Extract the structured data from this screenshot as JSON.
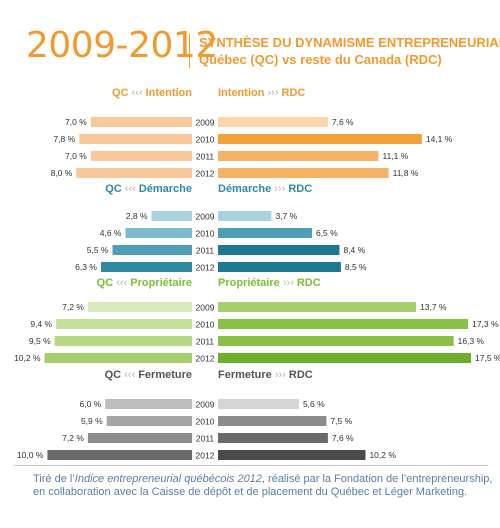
{
  "header": {
    "years": "2009-2012",
    "title_line1": "SYNTHÈSE DU DYNAMISME ENTREPRENEURIAL",
    "title_line2": "Québec (QC) vs reste du Canada (RDC)"
  },
  "footer": {
    "text_pre": "Tiré de l’",
    "text_italic": "Indice entrepreneurial québécois 2012",
    "text_post": ", réalisé par la Fondation de l’entrepreneurship, en collaboration avec la Caisse de dépôt et de placement du Québec et Léger Marketing."
  },
  "chart_data": {
    "type": "bar",
    "orientation": "horizontal-butterfly",
    "categories": [
      "2009",
      "2010",
      "2011",
      "2012"
    ],
    "xlim": [
      0,
      17.5
    ],
    "groups": [
      {
        "name": "Intention",
        "qc_label": "QC",
        "qc_arrows": "‹‹‹",
        "rdc_label": "RDC",
        "rdc_arrows": "›››",
        "qc_values": [
          7.0,
          7.8,
          7.0,
          8.0
        ],
        "qc_labels": [
          "7,0 %",
          "7,8 %",
          "7,0 %",
          "8,0 %"
        ],
        "rdc_values": [
          7.6,
          14.1,
          11.1,
          11.8
        ],
        "rdc_labels": [
          "7,6 %",
          "14,1 %",
          "11,1 %",
          "11,8 %"
        ],
        "heading_color": "#f39a2e",
        "qc_colors": [
          "#f8c99a",
          "#f8c99a",
          "#f8c99a",
          "#f8c99a"
        ],
        "rdc_colors": [
          "#fbd7ae",
          "#f3a038",
          "#f6b266",
          "#f6b266"
        ]
      },
      {
        "name": "Démarche",
        "qc_label": "QC",
        "qc_arrows": "‹‹‹",
        "rdc_label": "RDC",
        "rdc_arrows": "›››",
        "qc_values": [
          2.8,
          4.6,
          5.5,
          6.3
        ],
        "qc_labels": [
          "2,8 %",
          "4,6 %",
          "5,5 %",
          "6,3 %"
        ],
        "rdc_values": [
          3.7,
          6.5,
          8.4,
          8.5
        ],
        "rdc_labels": [
          "3,7 %",
          "6,5 %",
          "8,4 %",
          "8,5 %"
        ],
        "heading_color": "#2f8aa3",
        "qc_colors": [
          "#a8d3df",
          "#7dbccd",
          "#4e9fb5",
          "#2f8aa3"
        ],
        "rdc_colors": [
          "#a8d3df",
          "#4e9fb5",
          "#1d7893",
          "#1d7893"
        ]
      },
      {
        "name": "Propriétaire",
        "qc_label": "QC",
        "qc_arrows": "‹‹‹",
        "rdc_label": "RDC",
        "rdc_arrows": "›››",
        "qc_values": [
          7.2,
          9.4,
          9.5,
          10.2
        ],
        "qc_labels": [
          "7,2 %",
          "9,4 %",
          "9,5 %",
          "10,2 %"
        ],
        "rdc_values": [
          13.7,
          17.3,
          16.3,
          17.5
        ],
        "rdc_labels": [
          "13,7 %",
          "17,3 %",
          "16,3 %",
          "17,5 %"
        ],
        "heading_color": "#7fbd3d",
        "qc_colors": [
          "#d9ebbd",
          "#c4e09b",
          "#b7d986",
          "#a5cf6b"
        ],
        "rdc_colors": [
          "#a5cf6b",
          "#88c144",
          "#88c144",
          "#6fae2d"
        ]
      },
      {
        "name": "Fermeture",
        "qc_label": "QC",
        "qc_arrows": "‹‹‹",
        "rdc_label": "RDC",
        "rdc_arrows": "›››",
        "qc_values": [
          6.0,
          5.9,
          7.2,
          10.0
        ],
        "qc_labels": [
          "6,0 %",
          "5,9 %",
          "7,2 %",
          "10,0 %"
        ],
        "rdc_values": [
          5.6,
          7.5,
          7.6,
          10.2
        ],
        "rdc_labels": [
          "5,6 %",
          "7,5 %",
          "7,6 %",
          "10,2 %"
        ],
        "heading_color": "#555555",
        "qc_colors": [
          "#bdbdbd",
          "#a6a6a6",
          "#8c8c8c",
          "#6a6a6a"
        ],
        "rdc_colors": [
          "#d4d4d4",
          "#8c8c8c",
          "#6a6a6a",
          "#4a4a4a"
        ]
      }
    ]
  }
}
